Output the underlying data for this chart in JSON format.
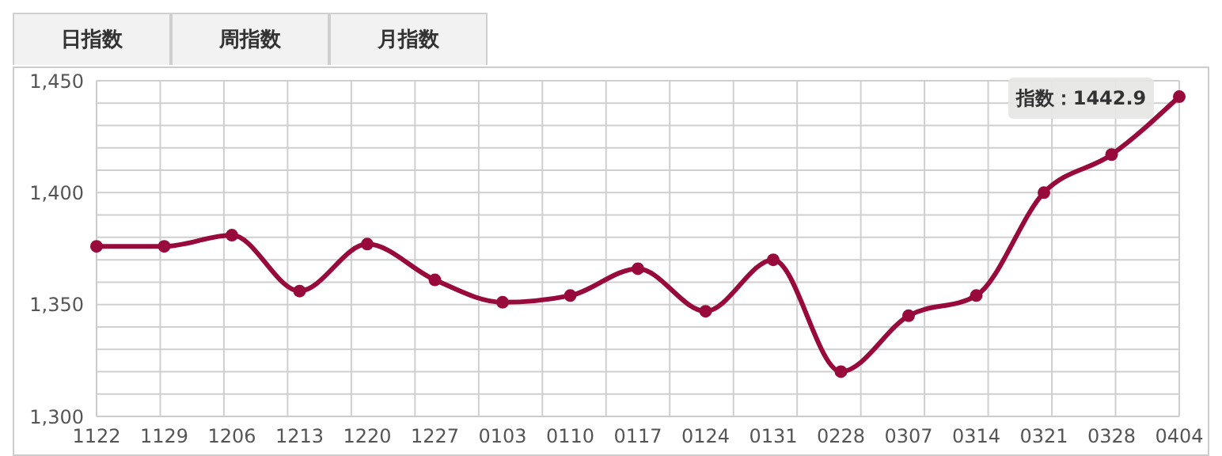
{
  "chart_data": {
    "type": "line",
    "categories": [
      "1122",
      "1129",
      "1206",
      "1213",
      "1220",
      "1227",
      "0103",
      "0110",
      "0117",
      "0124",
      "0131",
      "0228",
      "0307",
      "0314",
      "0321",
      "0328",
      "0404"
    ],
    "series": [
      {
        "color": "#990a3c",
        "values": [
          1376,
          1376,
          1381,
          1356,
          1377,
          1361,
          1351,
          1354,
          1366,
          1347,
          1370,
          1320,
          1345,
          1354,
          1400,
          1417,
          1442.9
        ]
      }
    ],
    "ylim": [
      1300,
      1450
    ],
    "yticks": [
      {
        "value": 1300,
        "label": "1,300"
      },
      {
        "value": 1310,
        "label": null
      },
      {
        "value": 1320,
        "label": null
      },
      {
        "value": 1330,
        "label": null
      },
      {
        "value": 1340,
        "label": null
      },
      {
        "value": 1350,
        "label": "1,350"
      },
      {
        "value": 1360,
        "label": null
      },
      {
        "value": 1370,
        "label": null
      },
      {
        "value": 1380,
        "label": null
      },
      {
        "value": 1390,
        "label": null
      },
      {
        "value": 1400,
        "label": "1,400"
      },
      {
        "value": 1410,
        "label": null
      },
      {
        "value": 1420,
        "label": null
      },
      {
        "value": 1430,
        "label": null
      },
      {
        "value": 1440,
        "label": null
      },
      {
        "value": 1450,
        "label": "1,450"
      }
    ],
    "grid": true,
    "marker": "circle",
    "line_style": "solid",
    "annotations": [
      "日指数",
      "周指数",
      "月指数",
      {
        "text": "指数：1442.9",
        "x": "0404",
        "y": 1442.9
      }
    ]
  }
}
